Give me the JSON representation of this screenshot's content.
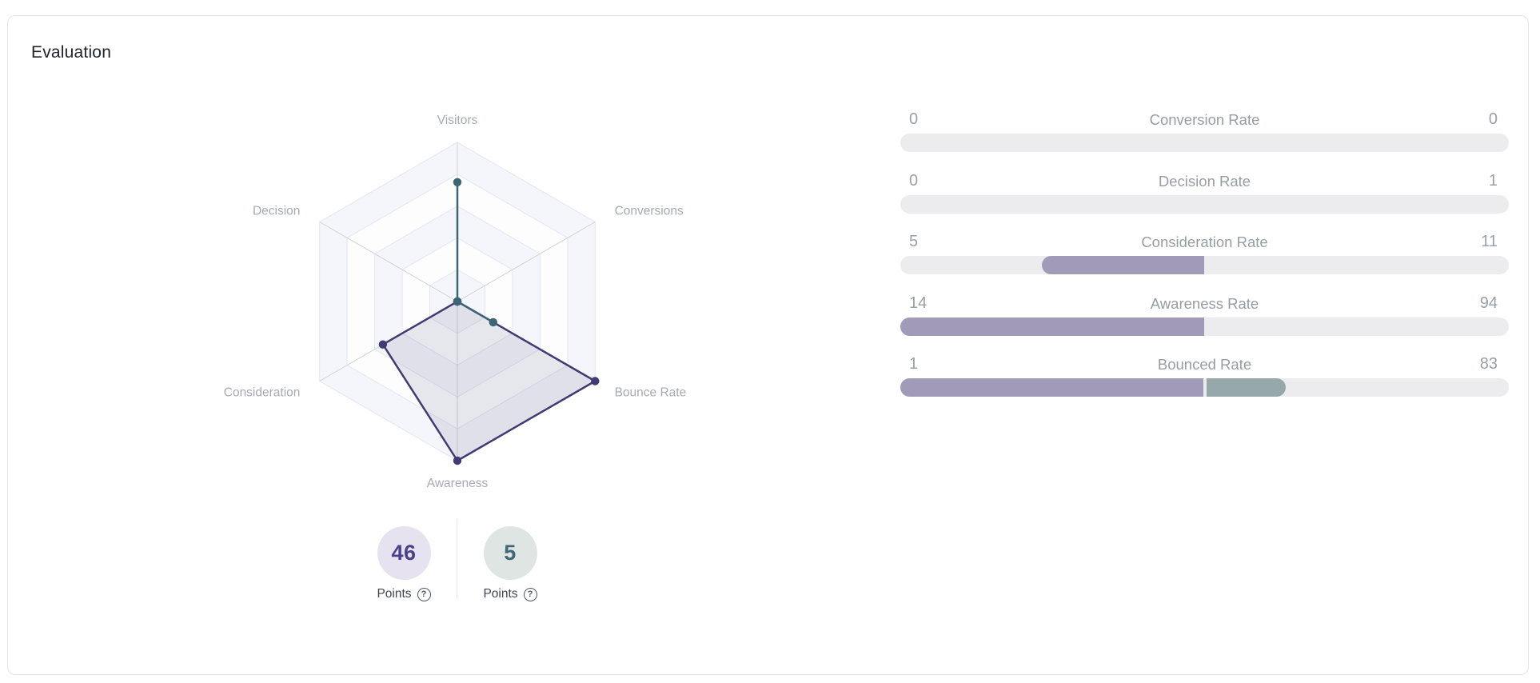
{
  "title": "Evaluation",
  "points": [
    {
      "value": "46",
      "label": "Points",
      "help_icon": "?",
      "circle_bg": "#e6e2f0",
      "value_color": "#4a4189"
    },
    {
      "value": "5",
      "label": "Points",
      "help_icon": "?",
      "circle_bg": "#dee5e3",
      "value_color": "#436779"
    }
  ],
  "chart_data": [
    {
      "type": "radar",
      "axes": [
        "Visitors",
        "Conversions",
        "Bounce Rate",
        "Awareness",
        "Consideration",
        "Decision"
      ],
      "rings": 5,
      "center": [
        292,
        252
      ],
      "radius": 199,
      "label_offset": 28,
      "ring_color": "#e3e6f3",
      "spoke_color": "#d0d2d6",
      "band_colors": [
        "#f5f6fb",
        "#fdfdfe"
      ],
      "axis_label_color": "#a6abb3",
      "series": [
        {
          "name": "primary",
          "color": "#413b73",
          "fill": "rgba(80,74,120,0.13)",
          "values_pct": [
            0,
            0,
            100,
            100,
            54,
            0
          ]
        },
        {
          "name": "secondary",
          "color": "#3e6574",
          "fill": "rgba(62,101,116,0.08)",
          "values_pct": [
            75,
            0,
            26,
            0,
            0,
            0
          ]
        }
      ]
    },
    {
      "type": "bar",
      "track_color": "#ececee",
      "fill_colors": {
        "purple": "#a19bb9",
        "teal": "#96a8aa"
      },
      "rows": [
        {
          "label": "Conversion Rate",
          "left": "0",
          "right": "0",
          "segments": []
        },
        {
          "label": "Decision Rate",
          "left": "0",
          "right": "1",
          "segments": []
        },
        {
          "label": "Consideration Rate",
          "left": "5",
          "right": "11",
          "segments": [
            {
              "start_pct": 23.3,
              "end_pct": 49.9,
              "color": "#a19bb9",
              "round_left": true,
              "round_right": false
            }
          ]
        },
        {
          "label": "Awareness Rate",
          "left": "14",
          "right": "94",
          "segments": [
            {
              "start_pct": 0,
              "end_pct": 49.9,
              "color": "#a19bb9",
              "round_left": true,
              "round_right": false
            }
          ]
        },
        {
          "label": "Bounced Rate",
          "left": "1",
          "right": "83",
          "segments": [
            {
              "start_pct": 0,
              "end_pct": 49.8,
              "color": "#a19bb9",
              "round_left": true,
              "round_right": false
            },
            {
              "start_pct": 50.3,
              "end_pct": 63.3,
              "color": "#96a8aa",
              "round_left": false,
              "round_right": true
            }
          ]
        }
      ]
    }
  ]
}
